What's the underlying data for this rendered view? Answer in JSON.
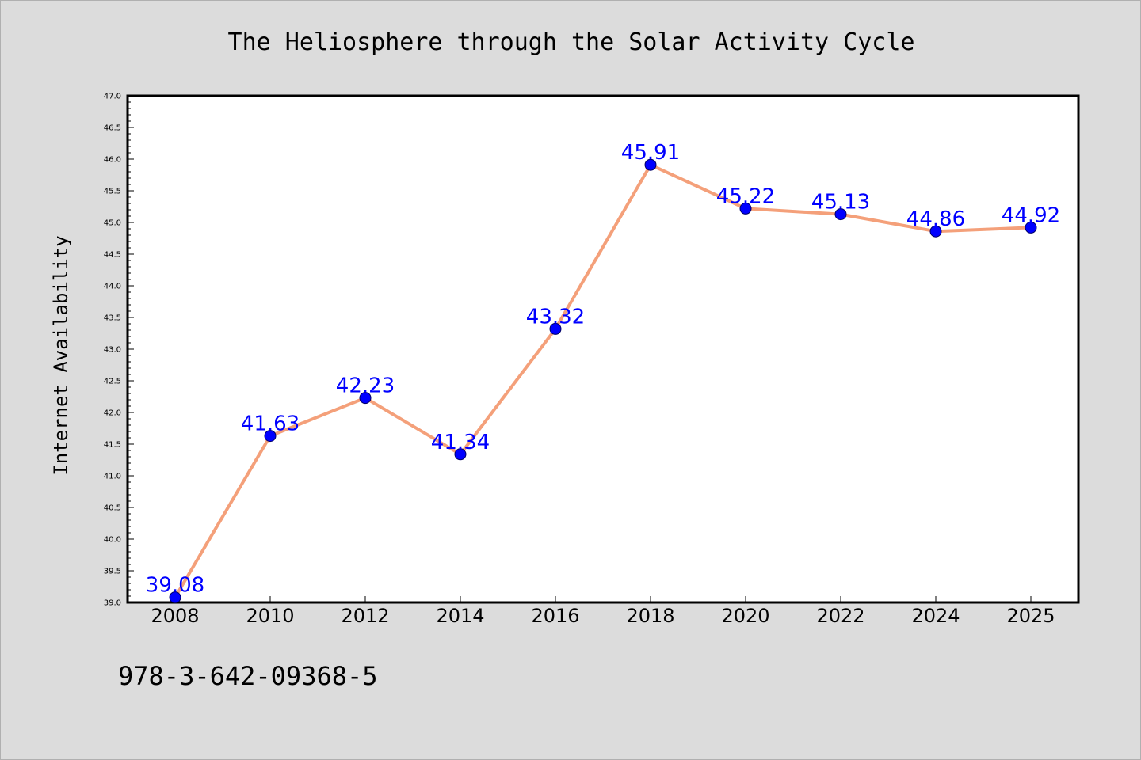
{
  "chart_data": {
    "type": "line",
    "title": "The Heliosphere through the Solar Activity Cycle",
    "xlabel": "",
    "ylabel": "Internet Availability",
    "categories": [
      "2008",
      "2010",
      "2012",
      "2014",
      "2016",
      "2018",
      "2020",
      "2022",
      "2024",
      "2025"
    ],
    "series": [
      {
        "values": [
          39.08,
          41.63,
          42.23,
          41.34,
          43.32,
          45.91,
          45.22,
          45.13,
          44.86,
          44.92
        ],
        "data_labels": [
          "39.08",
          "41.63",
          "42.23",
          "41.34",
          "43.32",
          "45.91",
          "45.22",
          "45.13",
          "44.86",
          "44.92"
        ],
        "line_color": "#f4a07a",
        "marker_color": "#0000ff"
      }
    ],
    "ylim": [
      39.0,
      47.0
    ],
    "yticks": [
      "39.0",
      "39.5",
      "40.0",
      "40.5",
      "41.0",
      "41.5",
      "42.0",
      "42.5",
      "43.0",
      "43.5",
      "44.0",
      "44.5",
      "45.0",
      "45.5",
      "46.0",
      "46.5",
      "47.0"
    ],
    "grid": false,
    "legend": "none",
    "label_color": "#0000ff"
  },
  "footnote": "978-3-642-09368-5"
}
